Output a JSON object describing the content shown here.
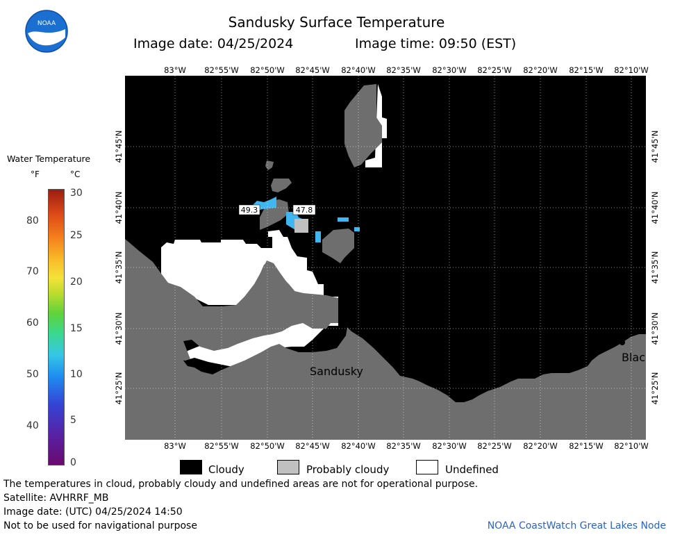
{
  "header": {
    "title": "Sandusky Surface Temperature",
    "image_date": "Image date: 04/25/2024",
    "image_time": "Image time: 09:50 (EST)",
    "logo_text": "NOAA"
  },
  "legend": {
    "title": "Water Temperature",
    "unit_f": "°F",
    "unit_c": "°C",
    "f_ticks": [
      "80",
      "70",
      "60",
      "50",
      "40"
    ],
    "c_ticks": [
      "30",
      "25",
      "20",
      "15",
      "10",
      "5",
      "0"
    ]
  },
  "map": {
    "top_lon_labels": [
      "83°W",
      "82°55'W",
      "82°50'W",
      "82°45'W",
      "82°40'W",
      "82°35'W",
      "82°30'W",
      "82°25'W",
      "82°20'W",
      "82°15'W",
      "82°10'W"
    ],
    "bottom_lon_labels": [
      "83°W",
      "82°55'W",
      "82°50'W",
      "82°45'W",
      "82°40'W",
      "82°35'W",
      "82°30'W",
      "82°25'W",
      "82°20'W",
      "82°15'W",
      "82°10'W"
    ],
    "lat_labels": [
      "41°45'N",
      "41°40'N",
      "41°35'N",
      "41°30'N",
      "41°25'N"
    ],
    "place_sandusky": "Sandusky",
    "place_blac": "Blac",
    "temp_label_1": "49.3",
    "temp_label_2": "47.8"
  },
  "key": {
    "cloudy": "Cloudy",
    "probably_cloudy": "Probably cloudy",
    "undefined": "Undefined"
  },
  "footer": {
    "disclaimer": "The temperatures in cloud, probably cloudy and undefined areas are not for operational purpose.",
    "satellite": "Satellite: AVHRRF_MB",
    "utc_date": "Image date: (UTC) 04/25/2024  14:50",
    "nav_warning": "Not to be used for navigational purpose",
    "credit": "NOAA CoastWatch Great Lakes Node"
  },
  "colors": {
    "land": "#6e6e6e",
    "cloudy": "#000000",
    "probably_cloudy": "#c0c0c0",
    "undefined": "#ffffff",
    "water_temp": "#40b6f0"
  }
}
